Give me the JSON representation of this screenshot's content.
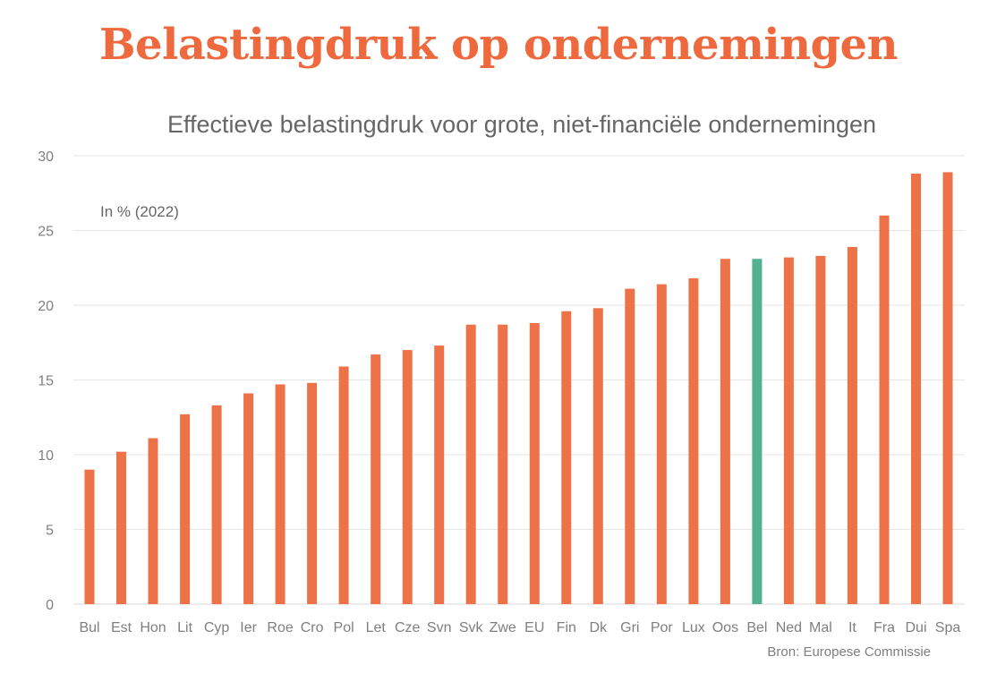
{
  "header": {
    "title": "Belastingdruk op ondernemingen"
  },
  "chart_data": {
    "type": "bar",
    "title": "Effectieve belastingdruk voor grote, niet-financiële ondernemingen",
    "unit_label": "In % (2022)",
    "source": "Bron: Europese Commissie",
    "categories": [
      "Bul",
      "Est",
      "Hon",
      "Lit",
      "Cyp",
      "Ier",
      "Roe",
      "Cro",
      "Pol",
      "Let",
      "Cze",
      "Svn",
      "Svk",
      "Zwe",
      "EU",
      "Fin",
      "Dk",
      "Gri",
      "Por",
      "Lux",
      "Oos",
      "Bel",
      "Ned",
      "Mal",
      "It",
      "Fra",
      "Dui",
      "Spa"
    ],
    "values": [
      9.0,
      10.2,
      11.1,
      12.7,
      13.3,
      14.1,
      14.7,
      14.8,
      15.9,
      16.7,
      17.0,
      17.3,
      18.7,
      18.7,
      18.8,
      19.6,
      19.8,
      21.1,
      21.4,
      21.8,
      23.1,
      23.1,
      23.2,
      23.3,
      23.9,
      26.0,
      28.8,
      28.9
    ],
    "highlight": "Bel",
    "ylim": [
      0,
      30
    ],
    "yticks": [
      0,
      5,
      10,
      15,
      20,
      25,
      30
    ],
    "grid": true,
    "legend": "none",
    "colors": {
      "bar": "#ee7248",
      "highlight": "#52b290",
      "grid": "#e6e6e6",
      "title": "#ee6a3e"
    }
  }
}
